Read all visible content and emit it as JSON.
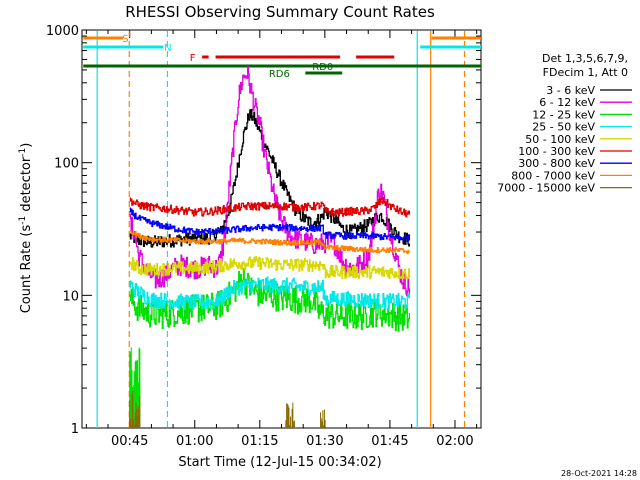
{
  "chart_data": {
    "type": "line",
    "title": "RHESSI Observing Summary Count Rates",
    "xlabel": "Start Time (12-Jul-15 00:34:02)",
    "ylabel_parts": [
      "Count Rate (s",
      "-1",
      " detector",
      "-1",
      ")"
    ],
    "yscale": "log",
    "ylim": [
      1,
      1000
    ],
    "xlim_minutes": [
      34.0,
      126.0
    ],
    "x_ticks": [
      {
        "t": 45,
        "label": "00:45"
      },
      {
        "t": 60,
        "label": "01:00"
      },
      {
        "t": 75,
        "label": "01:15"
      },
      {
        "t": 90,
        "label": "01:30"
      },
      {
        "t": 105,
        "label": "01:45"
      },
      {
        "t": 120,
        "label": "02:00"
      }
    ],
    "y_ticks": [
      {
        "v": 1,
        "label": "1"
      },
      {
        "v": 10,
        "label": "10"
      },
      {
        "v": 100,
        "label": "100"
      },
      {
        "v": 1000,
        "label": "1000"
      }
    ],
    "legend": {
      "header": [
        "Det 1,3,5,6,7,9,",
        "FDecim 1, Att 0"
      ],
      "entries": [
        {
          "label": "3 - 6 keV",
          "color": "#000000"
        },
        {
          "label": "6 - 12 keV",
          "color": "#e000e0"
        },
        {
          "label": "12 - 25 keV",
          "color": "#00e000"
        },
        {
          "label": "25 - 50 keV",
          "color": "#00e8e8"
        },
        {
          "label": "50 - 100 keV",
          "color": "#d8d800"
        },
        {
          "label": "100 - 300 keV",
          "color": "#e00000"
        },
        {
          "label": "300 - 800 keV",
          "color": "#0000ff"
        },
        {
          "label": "800 - 7000 keV",
          "color": "#ff8000"
        },
        {
          "label": "7000 - 15000 keV",
          "color": "#8a6a00"
        }
      ]
    },
    "series": [
      {
        "name": "3 - 6 keV",
        "color": "#000000",
        "seg": [
          45,
          109.5
        ],
        "points": [
          [
            45,
            28
          ],
          [
            47,
            26
          ],
          [
            50,
            25
          ],
          [
            55,
            26
          ],
          [
            60,
            27
          ],
          [
            63,
            27
          ],
          [
            66,
            30
          ],
          [
            68,
            45
          ],
          [
            69.5,
            80
          ],
          [
            71,
            150
          ],
          [
            72.5,
            230
          ],
          [
            73.5,
            220
          ],
          [
            75,
            170
          ],
          [
            77,
            120
          ],
          [
            79,
            85
          ],
          [
            81,
            60
          ],
          [
            83,
            45
          ],
          [
            85,
            38
          ],
          [
            87,
            35
          ],
          [
            89,
            38
          ],
          [
            90,
            43
          ],
          [
            92,
            38
          ],
          [
            94,
            32
          ],
          [
            96,
            30
          ],
          [
            98,
            32
          ],
          [
            100,
            34
          ],
          [
            101.5,
            38
          ],
          [
            103,
            40
          ],
          [
            105,
            33
          ],
          [
            107,
            28
          ],
          [
            109.5,
            26
          ]
        ],
        "noise": 0.05
      },
      {
        "name": "6 - 12 keV",
        "color": "#e000e0",
        "seg": [
          45,
          109.5
        ],
        "points": [
          [
            45,
            35
          ],
          [
            46,
            30
          ],
          [
            47,
            20
          ],
          [
            49,
            15
          ],
          [
            51,
            13
          ],
          [
            53,
            14
          ],
          [
            55,
            16
          ],
          [
            57,
            17
          ],
          [
            59,
            16
          ],
          [
            61,
            16
          ],
          [
            63,
            17
          ],
          [
            65,
            16
          ],
          [
            66,
            19
          ],
          [
            67,
            30
          ],
          [
            68,
            70
          ],
          [
            69,
            150
          ],
          [
            70,
            300
          ],
          [
            71,
            430
          ],
          [
            72,
            480
          ],
          [
            73,
            350
          ],
          [
            74,
            250
          ],
          [
            75,
            190
          ],
          [
            76,
            120
          ],
          [
            78,
            60
          ],
          [
            80,
            36
          ],
          [
            82,
            28
          ],
          [
            84,
            26
          ],
          [
            86,
            25
          ],
          [
            88,
            24
          ],
          [
            90,
            25
          ],
          [
            92,
            25
          ],
          [
            93,
            22
          ],
          [
            94,
            18
          ],
          [
            96,
            16
          ],
          [
            98,
            17
          ],
          [
            99,
            18
          ],
          [
            100,
            20
          ],
          [
            101,
            30
          ],
          [
            102,
            50
          ],
          [
            102.5,
            65
          ],
          [
            103.5,
            55
          ],
          [
            104.5,
            35
          ],
          [
            106,
            22
          ],
          [
            107,
            16
          ],
          [
            108,
            13
          ],
          [
            109.5,
            11
          ]
        ],
        "noise": 0.08
      },
      {
        "name": "12 - 25 keV",
        "color": "#00e000",
        "seg": [
          45,
          109.5
        ],
        "points": [
          [
            45,
            9.5
          ],
          [
            47,
            8
          ],
          [
            50,
            7.2
          ],
          [
            53,
            7.2
          ],
          [
            56,
            7.5
          ],
          [
            59,
            7.8
          ],
          [
            62,
            8
          ],
          [
            65,
            8.3
          ],
          [
            67,
            9
          ],
          [
            68,
            10
          ],
          [
            70,
            12
          ],
          [
            71,
            14
          ],
          [
            72,
            12
          ],
          [
            74,
            10.5
          ],
          [
            76,
            10
          ],
          [
            78,
            10
          ],
          [
            80,
            9.5
          ],
          [
            82,
            9.5
          ],
          [
            84,
            9.3
          ],
          [
            86,
            9.3
          ],
          [
            87.5,
            9
          ],
          [
            88.5,
            7.5
          ],
          [
            90,
            7.2
          ],
          [
            92,
            7
          ],
          [
            95,
            7
          ],
          [
            98,
            7
          ],
          [
            100,
            7.2
          ],
          [
            102,
            7.5
          ],
          [
            104,
            7.3
          ],
          [
            106,
            7
          ],
          [
            108,
            6.8
          ],
          [
            109.5,
            6.6
          ]
        ],
        "noise": 0.11
      },
      {
        "name": "25 - 50 keV",
        "color": "#00e8e8",
        "seg": [
          45,
          109.5
        ],
        "points": [
          [
            45,
            12
          ],
          [
            47,
            10.5
          ],
          [
            50,
            9.3
          ],
          [
            55,
            9
          ],
          [
            60,
            8.8
          ],
          [
            65,
            9
          ],
          [
            67,
            10
          ],
          [
            68,
            11
          ],
          [
            70,
            11.5
          ],
          [
            73,
            12
          ],
          [
            76,
            12
          ],
          [
            79,
            11.8
          ],
          [
            82,
            11.8
          ],
          [
            85,
            11.5
          ],
          [
            88,
            11.5
          ],
          [
            89.5,
            11.3
          ],
          [
            90,
            9.5
          ],
          [
            95,
            9.3
          ],
          [
            100,
            9.2
          ],
          [
            105,
            9
          ],
          [
            109.5,
            9
          ]
        ],
        "noise": 0.06
      },
      {
        "name": "50 - 100 keV",
        "color": "#d8d800",
        "seg": [
          45,
          109.5
        ],
        "points": [
          [
            45,
            18
          ],
          [
            47,
            16
          ],
          [
            50,
            15.5
          ],
          [
            55,
            16
          ],
          [
            60,
            16
          ],
          [
            65,
            16.5
          ],
          [
            67,
            17
          ],
          [
            70,
            17.5
          ],
          [
            75,
            17.5
          ],
          [
            80,
            17
          ],
          [
            85,
            17
          ],
          [
            88,
            17
          ],
          [
            89.5,
            17
          ],
          [
            90,
            15
          ],
          [
            95,
            15
          ],
          [
            100,
            15
          ],
          [
            105,
            15
          ],
          [
            109.5,
            14.5
          ]
        ],
        "noise": 0.05
      },
      {
        "name": "100 - 300 keV",
        "color": "#e00000",
        "seg": [
          45,
          109.5
        ],
        "points": [
          [
            45,
            52
          ],
          [
            47,
            48
          ],
          [
            50,
            46
          ],
          [
            53,
            45
          ],
          [
            56,
            44
          ],
          [
            60,
            42
          ],
          [
            64,
            43
          ],
          [
            66,
            44
          ],
          [
            68,
            45
          ],
          [
            72,
            47
          ],
          [
            76,
            47
          ],
          [
            80,
            47
          ],
          [
            85,
            46
          ],
          [
            88,
            47
          ],
          [
            89.5,
            48
          ],
          [
            90,
            43
          ],
          [
            93,
            42
          ],
          [
            96,
            43
          ],
          [
            99,
            43
          ],
          [
            101,
            45
          ],
          [
            102,
            48
          ],
          [
            103,
            52
          ],
          [
            104,
            50
          ],
          [
            106,
            45
          ],
          [
            108,
            42
          ],
          [
            109.5,
            41
          ]
        ],
        "noise": 0.03
      },
      {
        "name": "300 - 800 keV",
        "color": "#0000ff",
        "seg": [
          45,
          109.5
        ],
        "points": [
          [
            45,
            43
          ],
          [
            47,
            38
          ],
          [
            50,
            35
          ],
          [
            55,
            32
          ],
          [
            60,
            30
          ],
          [
            65,
            30.5
          ],
          [
            68,
            31
          ],
          [
            72,
            32
          ],
          [
            76,
            32.5
          ],
          [
            80,
            32.5
          ],
          [
            85,
            32
          ],
          [
            88,
            32
          ],
          [
            89.5,
            32
          ],
          [
            90,
            28.5
          ],
          [
            95,
            28
          ],
          [
            100,
            28
          ],
          [
            105,
            27.5
          ],
          [
            109.5,
            27
          ]
        ],
        "noise": 0.025
      },
      {
        "name": "800 - 7000 keV",
        "color": "#ff8000",
        "seg": [
          45,
          109.5
        ],
        "points": [
          [
            45,
            31
          ],
          [
            47,
            28
          ],
          [
            50,
            26.5
          ],
          [
            55,
            26
          ],
          [
            60,
            25.5
          ],
          [
            65,
            25.5
          ],
          [
            70,
            25.8
          ],
          [
            75,
            25.5
          ],
          [
            80,
            25
          ],
          [
            85,
            25
          ],
          [
            89.5,
            25
          ],
          [
            90,
            23
          ],
          [
            95,
            22.5
          ],
          [
            100,
            22
          ],
          [
            105,
            22
          ],
          [
            109.5,
            21.5
          ]
        ],
        "noise": 0.02
      },
      {
        "name": "7000 - 15000 keV",
        "color": "#8a6a00",
        "seg": [
          45,
          47
        ],
        "points": [
          [
            45,
            1.8
          ],
          [
            46,
            1.9
          ],
          [
            47,
            1.7
          ]
        ],
        "noise": 0.0
      }
    ],
    "lowcounts": [
      {
        "color": "#00e000",
        "x": [
          45,
          47.5
        ],
        "ymin": 1.8,
        "ymax": 4.2
      },
      {
        "color": "#8a6a00",
        "x": [
          45,
          47.5
        ],
        "ymin": 1.0,
        "ymax": 1.9
      },
      {
        "color": "#8a6a00",
        "x": [
          81,
          83
        ],
        "ymin": 1.0,
        "ymax": 1.6
      },
      {
        "color": "#8a6a00",
        "x": [
          89,
          90
        ],
        "ymin": 1.0,
        "ymax": 1.4
      }
    ],
    "vlines": [
      {
        "t": 44.9,
        "color": "#ff8000",
        "dash": true
      },
      {
        "t": 53.7,
        "color": "#00e8e8",
        "dash": true
      },
      {
        "t": 37.5,
        "color": "#00e8e8",
        "dash": false
      },
      {
        "t": 111.3,
        "color": "#00e8e8",
        "dash": false
      },
      {
        "t": 114.4,
        "color": "#ff8000",
        "dash": false
      },
      {
        "t": 122.2,
        "color": "#ff8000",
        "dash": true
      }
    ],
    "flags": [
      {
        "label": "S",
        "color": "#ff8000",
        "y": 38,
        "segments": [
          [
            34.3,
            43.5
          ],
          [
            114.6,
            126
          ]
        ],
        "label_t": 44.0
      },
      {
        "label": "N",
        "color": "#00e8e8",
        "y": 47,
        "segments": [
          [
            34.3,
            52.8
          ],
          [
            112,
            126
          ]
        ],
        "label_t": 53.8
      },
      {
        "label": "F",
        "color": "#e00000",
        "y": 57,
        "segments": [
          [
            61.7,
            63.2
          ],
          [
            64.8,
            93.5
          ],
          [
            97.2,
            106
          ]
        ],
        "label_t": 59.5
      },
      {
        "label": "RD0",
        "color": "#006400",
        "y": 66,
        "segments": [
          [
            34.3,
            126
          ]
        ],
        "label_t": 89.5
      },
      {
        "label": "RD6",
        "color": "#006400",
        "y": 73,
        "segments": [
          [
            85.5,
            94
          ]
        ],
        "label_t": 79.5
      }
    ],
    "footer_date": "28-Oct-2021 14:28"
  }
}
